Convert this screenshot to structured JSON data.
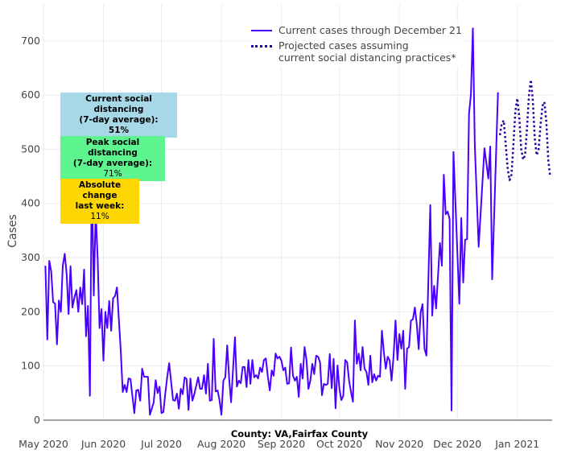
{
  "chart_data": {
    "type": "line",
    "title": "County: VA,Fairfax County",
    "xlabel": "",
    "ylabel": "Cases",
    "x_units": "days since 2020-05-01",
    "xlim": [
      0,
      263
    ],
    "ylim": [
      0,
      768
    ],
    "grid": true,
    "legend_position": "top-right",
    "x_ticks": [
      {
        "day": 0,
        "label": "May 2020"
      },
      {
        "day": 31,
        "label": "Jun 2020"
      },
      {
        "day": 61,
        "label": "Jul 2020"
      },
      {
        "day": 92,
        "label": "Aug 2020"
      },
      {
        "day": 123,
        "label": "Sep 2020"
      },
      {
        "day": 153,
        "label": "Oct 2020"
      },
      {
        "day": 184,
        "label": "Nov 2020"
      },
      {
        "day": 214,
        "label": "Dec 2020"
      },
      {
        "day": 245,
        "label": "Jan 2021"
      }
    ],
    "y_ticks": [
      0,
      100,
      200,
      300,
      400,
      500,
      600,
      700
    ],
    "series": [
      {
        "name": "Current cases through December 21",
        "color": "#4b00ff",
        "style": "solid",
        "points": [
          [
            1,
            285
          ],
          [
            2,
            149
          ],
          [
            3,
            294
          ],
          [
            4,
            275
          ],
          [
            5,
            218
          ],
          [
            6,
            215
          ],
          [
            7,
            140
          ],
          [
            8,
            221
          ],
          [
            9,
            200
          ],
          [
            10,
            285
          ],
          [
            11,
            307
          ],
          [
            12,
            270
          ],
          [
            13,
            196
          ],
          [
            14,
            284
          ],
          [
            15,
            208
          ],
          [
            16,
            226
          ],
          [
            17,
            240
          ],
          [
            18,
            200
          ],
          [
            19,
            245
          ],
          [
            20,
            214
          ],
          [
            21,
            278
          ],
          [
            22,
            155
          ],
          [
            23,
            211
          ],
          [
            24,
            45
          ],
          [
            25,
            465
          ],
          [
            26,
            230
          ],
          [
            27,
            385
          ],
          [
            28,
            300
          ],
          [
            29,
            170
          ],
          [
            30,
            205
          ],
          [
            31,
            110
          ],
          [
            32,
            200
          ],
          [
            33,
            170
          ],
          [
            34,
            220
          ],
          [
            35,
            165
          ],
          [
            36,
            225
          ],
          [
            37,
            229
          ],
          [
            38,
            245
          ],
          [
            40,
            126
          ],
          [
            41,
            52
          ],
          [
            42,
            65
          ],
          [
            43,
            52
          ],
          [
            44,
            77
          ],
          [
            45,
            76
          ],
          [
            47,
            13
          ],
          [
            48,
            55
          ],
          [
            49,
            56
          ],
          [
            50,
            36
          ],
          [
            51,
            95
          ],
          [
            52,
            80
          ],
          [
            54,
            80
          ],
          [
            55,
            10
          ],
          [
            57,
            33
          ],
          [
            58,
            74
          ],
          [
            59,
            50
          ],
          [
            60,
            62
          ],
          [
            61,
            13
          ],
          [
            62,
            15
          ],
          [
            63,
            50
          ],
          [
            64,
            80
          ],
          [
            65,
            105
          ],
          [
            67,
            37
          ],
          [
            68,
            36
          ],
          [
            69,
            49
          ],
          [
            70,
            21
          ],
          [
            71,
            58
          ],
          [
            72,
            48
          ],
          [
            73,
            79
          ],
          [
            74,
            76
          ],
          [
            75,
            19
          ],
          [
            76,
            77
          ],
          [
            77,
            36
          ],
          [
            78,
            48
          ],
          [
            80,
            79
          ],
          [
            81,
            58
          ],
          [
            82,
            58
          ],
          [
            83,
            83
          ],
          [
            84,
            49
          ],
          [
            85,
            104
          ],
          [
            86,
            36
          ],
          [
            87,
            37
          ],
          [
            88,
            150
          ],
          [
            89,
            53
          ],
          [
            90,
            55
          ],
          [
            91,
            37
          ],
          [
            92,
            10
          ],
          [
            93,
            73
          ],
          [
            94,
            79
          ],
          [
            95,
            138
          ],
          [
            96,
            77
          ],
          [
            97,
            33
          ],
          [
            99,
            153
          ],
          [
            100,
            62
          ],
          [
            101,
            73
          ],
          [
            102,
            68
          ],
          [
            103,
            98
          ],
          [
            104,
            98
          ],
          [
            105,
            61
          ],
          [
            106,
            111
          ],
          [
            107,
            67
          ],
          [
            108,
            111
          ],
          [
            109,
            79
          ],
          [
            110,
            83
          ],
          [
            111,
            77
          ],
          [
            112,
            97
          ],
          [
            113,
            89
          ],
          [
            114,
            111
          ],
          [
            115,
            114
          ],
          [
            116,
            80
          ],
          [
            117,
            55
          ],
          [
            118,
            92
          ],
          [
            119,
            82
          ],
          [
            120,
            123
          ],
          [
            121,
            114
          ],
          [
            122,
            117
          ],
          [
            123,
            110
          ],
          [
            124,
            92
          ],
          [
            125,
            97
          ],
          [
            126,
            67
          ],
          [
            127,
            68
          ],
          [
            128,
            134
          ],
          [
            129,
            82
          ],
          [
            130,
            73
          ],
          [
            131,
            80
          ],
          [
            132,
            43
          ],
          [
            133,
            104
          ],
          [
            134,
            77
          ],
          [
            135,
            135
          ],
          [
            136,
            111
          ],
          [
            137,
            58
          ],
          [
            138,
            73
          ],
          [
            139,
            104
          ],
          [
            140,
            85
          ],
          [
            141,
            119
          ],
          [
            142,
            117
          ],
          [
            143,
            107
          ],
          [
            144,
            46
          ],
          [
            145,
            67
          ],
          [
            146,
            65
          ],
          [
            147,
            67
          ],
          [
            148,
            122
          ],
          [
            149,
            59
          ],
          [
            150,
            113
          ],
          [
            151,
            22
          ],
          [
            152,
            101
          ],
          [
            153,
            58
          ],
          [
            154,
            37
          ],
          [
            155,
            45
          ],
          [
            156,
            111
          ],
          [
            157,
            107
          ],
          [
            158,
            73
          ],
          [
            159,
            52
          ],
          [
            160,
            34
          ],
          [
            161,
            184
          ],
          [
            162,
            104
          ],
          [
            163,
            123
          ],
          [
            164,
            92
          ],
          [
            165,
            135
          ],
          [
            166,
            95
          ],
          [
            167,
            89
          ],
          [
            168,
            65
          ],
          [
            169,
            119
          ],
          [
            170,
            70
          ],
          [
            171,
            85
          ],
          [
            172,
            73
          ],
          [
            173,
            82
          ],
          [
            174,
            80
          ],
          [
            175,
            165
          ],
          [
            176,
            126
          ],
          [
            177,
            95
          ],
          [
            178,
            117
          ],
          [
            179,
            110
          ],
          [
            180,
            73
          ],
          [
            181,
            119
          ],
          [
            182,
            184
          ],
          [
            183,
            111
          ],
          [
            184,
            159
          ],
          [
            185,
            132
          ],
          [
            186,
            165
          ],
          [
            187,
            58
          ],
          [
            188,
            132
          ],
          [
            189,
            135
          ],
          [
            190,
            184
          ],
          [
            191,
            186
          ],
          [
            192,
            208
          ],
          [
            193,
            177
          ],
          [
            194,
            131
          ],
          [
            195,
            199
          ],
          [
            196,
            214
          ],
          [
            197,
            132
          ],
          [
            198,
            119
          ],
          [
            200,
            397
          ],
          [
            201,
            193
          ],
          [
            202,
            248
          ],
          [
            203,
            206
          ],
          [
            205,
            327
          ],
          [
            206,
            285
          ],
          [
            207,
            453
          ],
          [
            208,
            380
          ],
          [
            209,
            385
          ],
          [
            210,
            371
          ],
          [
            211,
            18
          ],
          [
            212,
            495
          ],
          [
            215,
            215
          ],
          [
            216,
            373
          ],
          [
            217,
            254
          ],
          [
            218,
            333
          ],
          [
            219,
            334
          ],
          [
            220,
            565
          ],
          [
            221,
            602
          ],
          [
            222,
            723
          ],
          [
            223,
            508
          ],
          [
            225,
            320
          ],
          [
            228,
            502
          ],
          [
            230,
            446
          ],
          [
            231,
            505
          ],
          [
            232,
            260
          ],
          [
            235,
            605
          ]
        ]
      },
      {
        "name": "Projected cases assuming current social distancing practices*",
        "name_line1": "Projected cases assuming",
        "name_line2": "current social distancing practices*",
        "color": "#2a00a0",
        "style": "dotted",
        "points": [
          [
            236,
            526
          ],
          [
            237,
            548
          ],
          [
            238,
            553
          ],
          [
            239,
            510
          ],
          [
            240,
            465
          ],
          [
            241,
            443
          ],
          [
            242,
            453
          ],
          [
            243,
            510
          ],
          [
            244,
            570
          ],
          [
            245,
            594
          ],
          [
            246,
            560
          ],
          [
            247,
            500
          ],
          [
            248,
            481
          ],
          [
            249,
            489
          ],
          [
            250,
            540
          ],
          [
            251,
            600
          ],
          [
            252,
            628
          ],
          [
            253,
            590
          ],
          [
            254,
            520
          ],
          [
            255,
            489
          ],
          [
            256,
            500
          ],
          [
            257,
            545
          ],
          [
            258,
            580
          ],
          [
            259,
            587
          ],
          [
            260,
            550
          ],
          [
            261,
            480
          ],
          [
            262,
            449
          ]
        ]
      }
    ],
    "annotations": [
      {
        "title": "Current social distancing\n(7-day average):",
        "value": "51%",
        "color": "#a6d8e8",
        "bold_value": true
      },
      {
        "title": "Peak social distancing\n(7-day average):",
        "value": "71%",
        "color": "#5ef590",
        "bold_value": false
      },
      {
        "title": "Absolute change\nlast week:",
        "value": "11%",
        "color": "#ffd700",
        "bold_value": false
      }
    ]
  }
}
